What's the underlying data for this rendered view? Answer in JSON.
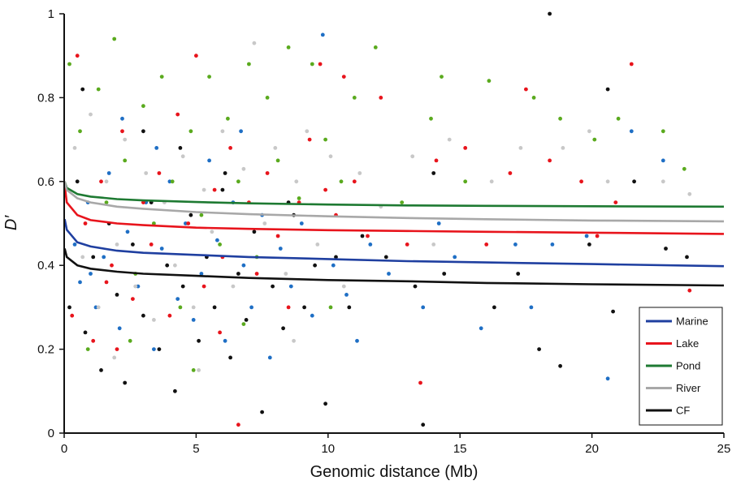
{
  "chart_data": {
    "type": "scatter",
    "xlabel": "Genomic distance (Mb)",
    "ylabel": "D′",
    "xlim": [
      0,
      25
    ],
    "ylim": [
      0,
      1
    ],
    "x_ticks": [
      0,
      5,
      10,
      15,
      20,
      25
    ],
    "y_ticks": [
      0,
      0.2,
      0.4,
      0.6,
      0.8,
      1
    ],
    "y_tick_labels": [
      "0",
      "0.2",
      "0.4",
      "0.6",
      "0.8",
      "1"
    ],
    "grid": false,
    "legend_position": "bottom-right",
    "legend": [
      "Marine",
      "Lake",
      "Pond",
      "River",
      "CF"
    ],
    "series": [
      {
        "name": "Marine",
        "color": "#1f6fc5",
        "line_color": "#1f3fa0",
        "fit_curve": [
          [
            0.02,
            0.51
          ],
          [
            0.1,
            0.485
          ],
          [
            0.5,
            0.455
          ],
          [
            1,
            0.445
          ],
          [
            2,
            0.435
          ],
          [
            3,
            0.43
          ],
          [
            5,
            0.425
          ],
          [
            7,
            0.42
          ],
          [
            10,
            0.415
          ],
          [
            13,
            0.41
          ],
          [
            16,
            0.407
          ],
          [
            20,
            0.403
          ],
          [
            25,
            0.398
          ]
        ],
        "points": [
          [
            0.4,
            0.45
          ],
          [
            0.6,
            0.36
          ],
          [
            0.9,
            0.55
          ],
          [
            1.2,
            0.3
          ],
          [
            1.5,
            0.42
          ],
          [
            1.7,
            0.62
          ],
          [
            2.1,
            0.25
          ],
          [
            2.4,
            0.48
          ],
          [
            2.8,
            0.35
          ],
          [
            3.1,
            0.55
          ],
          [
            3.4,
            0.2
          ],
          [
            3.7,
            0.44
          ],
          [
            4.0,
            0.6
          ],
          [
            4.3,
            0.32
          ],
          [
            4.6,
            0.5
          ],
          [
            4.9,
            0.27
          ],
          [
            5.2,
            0.38
          ],
          [
            5.5,
            0.65
          ],
          [
            5.8,
            0.46
          ],
          [
            6.1,
            0.22
          ],
          [
            6.4,
            0.55
          ],
          [
            6.8,
            0.4
          ],
          [
            7.1,
            0.3
          ],
          [
            7.5,
            0.52
          ],
          [
            7.8,
            0.18
          ],
          [
            8.2,
            0.44
          ],
          [
            8.6,
            0.35
          ],
          [
            9.0,
            0.5
          ],
          [
            9.4,
            0.28
          ],
          [
            9.8,
            0.95
          ],
          [
            10.2,
            0.4
          ],
          [
            10.7,
            0.33
          ],
          [
            11.1,
            0.22
          ],
          [
            11.6,
            0.45
          ],
          [
            12.3,
            0.38
          ],
          [
            13.6,
            0.3
          ],
          [
            14.2,
            0.5
          ],
          [
            14.8,
            0.42
          ],
          [
            15.8,
            0.25
          ],
          [
            17.1,
            0.45
          ],
          [
            17.7,
            0.3
          ],
          [
            18.5,
            0.45
          ],
          [
            19.8,
            0.47
          ],
          [
            20.6,
            0.13
          ],
          [
            21.5,
            0.72
          ],
          [
            22.7,
            0.65
          ],
          [
            2.2,
            0.75
          ],
          [
            3.5,
            0.68
          ],
          [
            6.7,
            0.72
          ],
          [
            1.0,
            0.38
          ]
        ]
      },
      {
        "name": "Lake",
        "color": "#e8141c",
        "line_color": "#e8141c",
        "fit_curve": [
          [
            0.02,
            0.59
          ],
          [
            0.1,
            0.55
          ],
          [
            0.5,
            0.52
          ],
          [
            1,
            0.508
          ],
          [
            2,
            0.5
          ],
          [
            3,
            0.496
          ],
          [
            5,
            0.49
          ],
          [
            7,
            0.487
          ],
          [
            10,
            0.484
          ],
          [
            13,
            0.482
          ],
          [
            16,
            0.48
          ],
          [
            20,
            0.478
          ],
          [
            25,
            0.475
          ]
        ],
        "points": [
          [
            0.3,
            0.28
          ],
          [
            0.5,
            0.9
          ],
          [
            0.8,
            0.5
          ],
          [
            1.1,
            0.22
          ],
          [
            1.4,
            0.6
          ],
          [
            1.8,
            0.4
          ],
          [
            2.2,
            0.72
          ],
          [
            2.6,
            0.32
          ],
          [
            3.0,
            0.55
          ],
          [
            3.3,
            0.45
          ],
          [
            3.6,
            0.62
          ],
          [
            4.0,
            0.28
          ],
          [
            4.3,
            0.76
          ],
          [
            4.7,
            0.5
          ],
          [
            5.0,
            0.9
          ],
          [
            5.3,
            0.35
          ],
          [
            5.7,
            0.58
          ],
          [
            6.0,
            0.42
          ],
          [
            6.3,
            0.68
          ],
          [
            6.6,
            0.02
          ],
          [
            7.0,
            0.55
          ],
          [
            7.3,
            0.38
          ],
          [
            7.7,
            0.62
          ],
          [
            8.1,
            0.47
          ],
          [
            8.5,
            0.3
          ],
          [
            8.9,
            0.55
          ],
          [
            9.3,
            0.7
          ],
          [
            9.7,
            0.88
          ],
          [
            10.3,
            0.52
          ],
          [
            10.6,
            0.85
          ],
          [
            11.0,
            0.6
          ],
          [
            11.5,
            0.47
          ],
          [
            12.0,
            0.8
          ],
          [
            13.0,
            0.45
          ],
          [
            13.5,
            0.12
          ],
          [
            14.1,
            0.65
          ],
          [
            15.2,
            0.68
          ],
          [
            16.0,
            0.45
          ],
          [
            16.9,
            0.62
          ],
          [
            17.5,
            0.82
          ],
          [
            18.4,
            0.65
          ],
          [
            19.6,
            0.6
          ],
          [
            20.2,
            0.47
          ],
          [
            20.9,
            0.55
          ],
          [
            21.5,
            0.88
          ],
          [
            23.7,
            0.34
          ],
          [
            2.0,
            0.2
          ],
          [
            5.9,
            0.24
          ],
          [
            9.9,
            0.58
          ],
          [
            1.6,
            0.36
          ]
        ]
      },
      {
        "name": "Pond",
        "color": "#5aaa1e",
        "line_color": "#1e7a32",
        "fit_curve": [
          [
            0.02,
            0.6
          ],
          [
            0.1,
            0.585
          ],
          [
            0.5,
            0.57
          ],
          [
            1,
            0.564
          ],
          [
            2,
            0.558
          ],
          [
            3,
            0.555
          ],
          [
            5,
            0.551
          ],
          [
            7,
            0.548
          ],
          [
            10,
            0.545
          ],
          [
            13,
            0.543
          ],
          [
            16,
            0.542
          ],
          [
            20,
            0.541
          ],
          [
            25,
            0.54
          ]
        ],
        "points": [
          [
            0.2,
            0.88
          ],
          [
            0.6,
            0.72
          ],
          [
            0.9,
            0.2
          ],
          [
            1.3,
            0.82
          ],
          [
            1.6,
            0.55
          ],
          [
            1.9,
            0.94
          ],
          [
            2.3,
            0.65
          ],
          [
            2.7,
            0.38
          ],
          [
            3.0,
            0.78
          ],
          [
            3.4,
            0.5
          ],
          [
            3.7,
            0.85
          ],
          [
            4.1,
            0.6
          ],
          [
            4.4,
            0.3
          ],
          [
            4.8,
            0.72
          ],
          [
            5.2,
            0.52
          ],
          [
            5.5,
            0.85
          ],
          [
            5.9,
            0.45
          ],
          [
            6.2,
            0.75
          ],
          [
            6.6,
            0.6
          ],
          [
            7.0,
            0.88
          ],
          [
            7.3,
            0.42
          ],
          [
            7.7,
            0.8
          ],
          [
            8.1,
            0.65
          ],
          [
            8.5,
            0.92
          ],
          [
            8.9,
            0.56
          ],
          [
            9.4,
            0.88
          ],
          [
            9.9,
            0.7
          ],
          [
            10.5,
            0.6
          ],
          [
            11.0,
            0.8
          ],
          [
            11.8,
            0.92
          ],
          [
            12.8,
            0.55
          ],
          [
            13.9,
            0.75
          ],
          [
            14.3,
            0.85
          ],
          [
            15.2,
            0.6
          ],
          [
            16.1,
            0.84
          ],
          [
            17.8,
            0.8
          ],
          [
            18.8,
            0.75
          ],
          [
            20.1,
            0.7
          ],
          [
            21.0,
            0.75
          ],
          [
            22.7,
            0.72
          ],
          [
            23.5,
            0.63
          ],
          [
            2.5,
            0.22
          ],
          [
            4.9,
            0.15
          ],
          [
            6.8,
            0.26
          ],
          [
            10.1,
            0.3
          ]
        ]
      },
      {
        "name": "River",
        "color": "#c8c8c8",
        "line_color": "#a8a8a8",
        "fit_curve": [
          [
            0.02,
            0.6
          ],
          [
            0.1,
            0.58
          ],
          [
            0.5,
            0.56
          ],
          [
            1,
            0.55
          ],
          [
            2,
            0.54
          ],
          [
            3,
            0.535
          ],
          [
            5,
            0.527
          ],
          [
            7,
            0.522
          ],
          [
            10,
            0.517
          ],
          [
            13,
            0.513
          ],
          [
            16,
            0.51
          ],
          [
            20,
            0.507
          ],
          [
            25,
            0.505
          ]
        ],
        "points": [
          [
            0.4,
            0.68
          ],
          [
            0.7,
            0.42
          ],
          [
            1.0,
            0.76
          ],
          [
            1.3,
            0.3
          ],
          [
            1.6,
            0.6
          ],
          [
            2.0,
            0.45
          ],
          [
            2.3,
            0.7
          ],
          [
            2.7,
            0.35
          ],
          [
            3.1,
            0.62
          ],
          [
            3.4,
            0.27
          ],
          [
            3.8,
            0.55
          ],
          [
            4.2,
            0.4
          ],
          [
            4.5,
            0.66
          ],
          [
            4.9,
            0.3
          ],
          [
            5.3,
            0.58
          ],
          [
            5.6,
            0.48
          ],
          [
            6.0,
            0.72
          ],
          [
            6.4,
            0.35
          ],
          [
            6.8,
            0.63
          ],
          [
            7.2,
            0.93
          ],
          [
            7.6,
            0.5
          ],
          [
            8.0,
            0.68
          ],
          [
            8.4,
            0.38
          ],
          [
            8.8,
            0.6
          ],
          [
            9.2,
            0.72
          ],
          [
            9.6,
            0.45
          ],
          [
            10.1,
            0.66
          ],
          [
            10.6,
            0.35
          ],
          [
            11.2,
            0.62
          ],
          [
            12.0,
            0.54
          ],
          [
            13.2,
            0.66
          ],
          [
            14.0,
            0.45
          ],
          [
            14.6,
            0.7
          ],
          [
            16.2,
            0.6
          ],
          [
            17.3,
            0.68
          ],
          [
            18.9,
            0.68
          ],
          [
            19.9,
            0.72
          ],
          [
            20.6,
            0.6
          ],
          [
            22.7,
            0.6
          ],
          [
            23.7,
            0.57
          ],
          [
            1.9,
            0.18
          ],
          [
            5.1,
            0.15
          ],
          [
            8.7,
            0.22
          ]
        ]
      },
      {
        "name": "CF",
        "color": "#111111",
        "line_color": "#111111",
        "fit_curve": [
          [
            0.02,
            0.44
          ],
          [
            0.1,
            0.42
          ],
          [
            0.5,
            0.4
          ],
          [
            1,
            0.392
          ],
          [
            2,
            0.385
          ],
          [
            3,
            0.38
          ],
          [
            5,
            0.375
          ],
          [
            7,
            0.37
          ],
          [
            10,
            0.365
          ],
          [
            13,
            0.362
          ],
          [
            16,
            0.358
          ],
          [
            20,
            0.355
          ],
          [
            25,
            0.352
          ]
        ],
        "points": [
          [
            0.2,
            0.3
          ],
          [
            0.5,
            0.6
          ],
          [
            0.8,
            0.24
          ],
          [
            1.1,
            0.42
          ],
          [
            1.4,
            0.15
          ],
          [
            1.7,
            0.5
          ],
          [
            2.0,
            0.33
          ],
          [
            2.3,
            0.12
          ],
          [
            2.6,
            0.45
          ],
          [
            3.0,
            0.28
          ],
          [
            3.3,
            0.55
          ],
          [
            3.6,
            0.2
          ],
          [
            3.9,
            0.4
          ],
          [
            4.2,
            0.1
          ],
          [
            4.5,
            0.35
          ],
          [
            4.8,
            0.52
          ],
          [
            5.1,
            0.22
          ],
          [
            5.4,
            0.42
          ],
          [
            5.7,
            0.3
          ],
          [
            6.0,
            0.58
          ],
          [
            6.3,
            0.18
          ],
          [
            6.6,
            0.38
          ],
          [
            6.9,
            0.27
          ],
          [
            7.2,
            0.48
          ],
          [
            7.5,
            0.05
          ],
          [
            7.9,
            0.35
          ],
          [
            8.3,
            0.25
          ],
          [
            8.7,
            0.52
          ],
          [
            9.1,
            0.3
          ],
          [
            9.5,
            0.4
          ],
          [
            9.9,
            0.07
          ],
          [
            10.3,
            0.42
          ],
          [
            10.8,
            0.3
          ],
          [
            11.3,
            0.47
          ],
          [
            12.2,
            0.42
          ],
          [
            13.3,
            0.35
          ],
          [
            13.6,
            0.02
          ],
          [
            14.0,
            0.62
          ],
          [
            14.4,
            0.38
          ],
          [
            16.3,
            0.3
          ],
          [
            17.2,
            0.38
          ],
          [
            18.0,
            0.2
          ],
          [
            18.4,
            1.0
          ],
          [
            18.8,
            0.16
          ],
          [
            19.9,
            0.45
          ],
          [
            20.6,
            0.82
          ],
          [
            20.8,
            0.29
          ],
          [
            21.6,
            0.6
          ],
          [
            22.8,
            0.44
          ],
          [
            23.6,
            0.42
          ],
          [
            0.7,
            0.82
          ],
          [
            3.0,
            0.72
          ],
          [
            4.4,
            0.68
          ],
          [
            6.1,
            0.62
          ],
          [
            8.5,
            0.55
          ]
        ]
      }
    ]
  }
}
